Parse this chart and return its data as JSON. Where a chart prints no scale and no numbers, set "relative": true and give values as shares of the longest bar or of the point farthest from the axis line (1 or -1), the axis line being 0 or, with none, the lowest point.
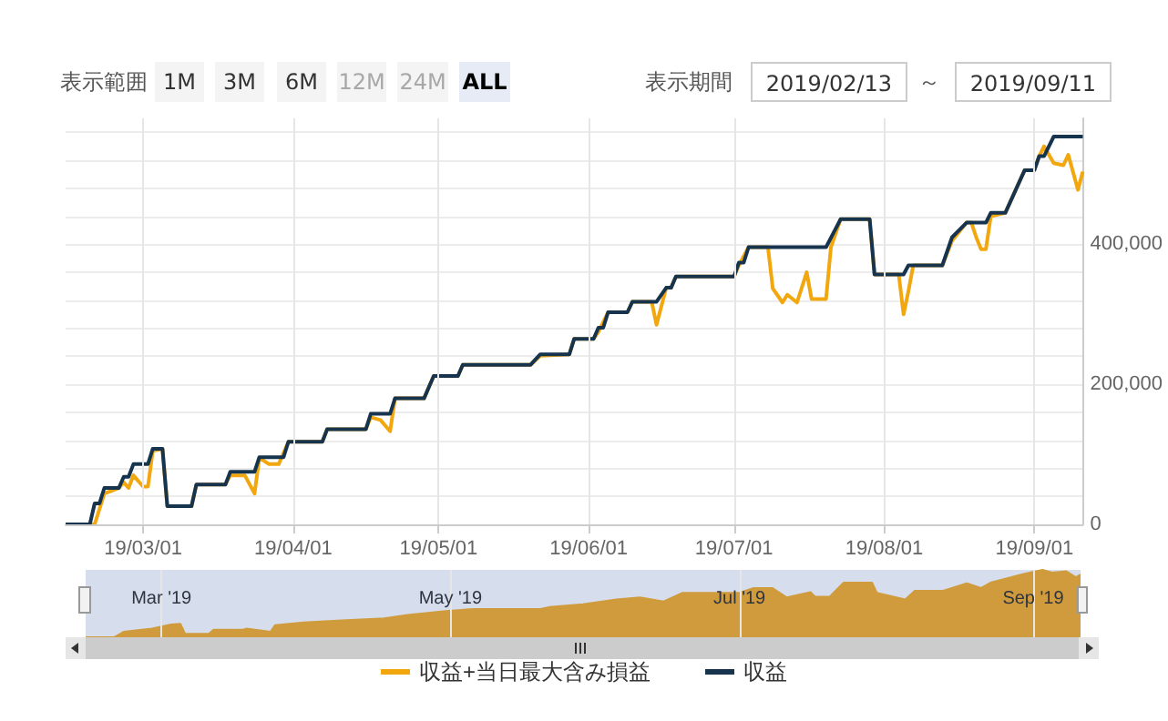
{
  "chart_data": [
    {
      "type": "line",
      "legend": "bottom",
      "grid": true,
      "annotations": [
        "表示範囲",
        "1M",
        "3M",
        "6M",
        "12M",
        "24M",
        "ALL",
        "表示期間",
        "2019/02/13",
        "～",
        "2019/09/11"
      ],
      "xlim": [
        "2019-02-13",
        "2019-09-11"
      ],
      "xticks": [
        {
          "value": "2019-03-01",
          "label": "19/03/01"
        },
        {
          "value": "2019-04-01",
          "label": "19/04/01"
        },
        {
          "value": "2019-05-01",
          "label": "19/05/01"
        },
        {
          "value": "2019-06-01",
          "label": "19/06/01"
        },
        {
          "value": "2019-07-01",
          "label": "19/07/01"
        },
        {
          "value": "2019-08-01",
          "label": "19/08/01"
        },
        {
          "value": "2019-09-01",
          "label": "19/09/01"
        }
      ],
      "ylim": [
        0,
        580000
      ],
      "yticks": [
        0,
        {
          "value": 40000,
          "label": null
        },
        {
          "value": 80000,
          "label": null
        },
        {
          "value": 120000,
          "label": null
        },
        {
          "value": 160000,
          "label": null
        },
        {
          "value": 200000,
          "label": "200,000"
        },
        {
          "value": 240000,
          "label": null
        },
        {
          "value": 280000,
          "label": null
        },
        {
          "value": 320000,
          "label": null
        },
        {
          "value": 360000,
          "label": null
        },
        {
          "value": 400000,
          "label": "400,000"
        },
        {
          "value": 440000,
          "label": null
        },
        {
          "value": 480000,
          "label": null
        },
        {
          "value": 520000,
          "label": null
        },
        {
          "value": 560000,
          "label": null
        }
      ],
      "series": [
        {
          "name": "収益+当日最大含み損益",
          "color": "#f2a70f",
          "x": [
            "2019-02-13",
            "2019-02-18",
            "2019-02-19",
            "2019-02-21",
            "2019-02-24",
            "2019-02-25",
            "2019-02-26",
            "2019-02-27",
            "2019-03-01",
            "2019-03-02",
            "2019-03-03",
            "2019-03-05",
            "2019-03-06",
            "2019-03-11",
            "2019-03-12",
            "2019-03-18",
            "2019-03-19",
            "2019-03-22",
            "2019-03-24",
            "2019-03-25",
            "2019-03-27",
            "2019-03-29",
            "2019-03-31",
            "2019-04-07",
            "2019-04-08",
            "2019-04-16",
            "2019-04-17",
            "2019-04-19",
            "2019-04-21",
            "2019-04-22",
            "2019-04-28",
            "2019-04-30",
            "2019-05-05",
            "2019-05-06",
            "2019-05-20",
            "2019-05-22",
            "2019-05-28",
            "2019-05-29",
            "2019-06-02",
            "2019-06-03",
            "2019-06-05",
            "2019-06-09",
            "2019-06-10",
            "2019-06-14",
            "2019-06-15",
            "2019-06-17",
            "2019-06-18",
            "2019-06-19",
            "2019-07-01",
            "2019-07-02",
            "2019-07-04",
            "2019-07-08",
            "2019-07-09",
            "2019-07-11",
            "2019-07-12",
            "2019-07-14",
            "2019-07-16",
            "2019-07-17",
            "2019-07-20",
            "2019-07-21",
            "2019-07-23",
            "2019-07-29",
            "2019-07-30",
            "2019-08-04",
            "2019-08-05",
            "2019-08-06",
            "2019-08-07",
            "2019-08-13",
            "2019-08-15",
            "2019-08-18",
            "2019-08-19",
            "2019-08-20",
            "2019-08-21",
            "2019-08-22",
            "2019-08-23",
            "2019-08-26",
            "2019-08-30",
            "2019-09-01",
            "2019-09-02",
            "2019-09-03",
            "2019-09-05",
            "2019-09-07",
            "2019-09-08",
            "2019-09-10",
            "2019-09-11"
          ],
          "values": [
            0,
            0,
            0,
            44000,
            52000,
            60000,
            52000,
            70000,
            54000,
            54000,
            105000,
            108000,
            26000,
            26000,
            57000,
            57000,
            70000,
            70000,
            44000,
            95000,
            86000,
            86000,
            118000,
            118000,
            136000,
            136000,
            153000,
            149000,
            133000,
            180000,
            180000,
            212000,
            212000,
            228000,
            228000,
            241000,
            243000,
            265000,
            265000,
            275000,
            303000,
            303000,
            318000,
            318000,
            285000,
            338000,
            338000,
            354000,
            354000,
            370000,
            396000,
            396000,
            337000,
            317000,
            328000,
            317000,
            360000,
            322000,
            322000,
            396000,
            436000,
            436000,
            357000,
            357000,
            300000,
            333000,
            370000,
            370000,
            405000,
            431000,
            431000,
            410000,
            393000,
            393000,
            440000,
            445000,
            506000,
            506000,
            526000,
            540000,
            516000,
            513000,
            528000,
            478000,
            504000
          ]
        },
        {
          "name": "収益",
          "color": "#17344f",
          "x": [
            "2019-02-13",
            "2019-02-18",
            "2019-02-19",
            "2019-02-20",
            "2019-02-21",
            "2019-02-24",
            "2019-02-25",
            "2019-02-26",
            "2019-02-27",
            "2019-03-02",
            "2019-03-03",
            "2019-03-05",
            "2019-03-06",
            "2019-03-11",
            "2019-03-12",
            "2019-03-18",
            "2019-03-19",
            "2019-03-24",
            "2019-03-25",
            "2019-03-30",
            "2019-03-31",
            "2019-04-07",
            "2019-04-08",
            "2019-04-16",
            "2019-04-17",
            "2019-04-21",
            "2019-04-22",
            "2019-04-28",
            "2019-04-30",
            "2019-05-05",
            "2019-05-06",
            "2019-05-20",
            "2019-05-22",
            "2019-05-28",
            "2019-05-29",
            "2019-06-02",
            "2019-06-03",
            "2019-06-04",
            "2019-06-05",
            "2019-06-09",
            "2019-06-10",
            "2019-06-15",
            "2019-06-17",
            "2019-06-18",
            "2019-06-19",
            "2019-07-01",
            "2019-07-02",
            "2019-07-03",
            "2019-07-04",
            "2019-07-20",
            "2019-07-23",
            "2019-07-29",
            "2019-07-30",
            "2019-08-05",
            "2019-08-06",
            "2019-08-13",
            "2019-08-15",
            "2019-08-18",
            "2019-08-22",
            "2019-08-23",
            "2019-08-26",
            "2019-08-30",
            "2019-09-01",
            "2019-09-02",
            "2019-09-03",
            "2019-09-05",
            "2019-09-11"
          ],
          "values": [
            0,
            0,
            30000,
            30000,
            52000,
            52000,
            68000,
            68000,
            86000,
            86000,
            108000,
            108000,
            26000,
            26000,
            57000,
            57000,
            75000,
            75000,
            96000,
            96000,
            118000,
            118000,
            136000,
            136000,
            158000,
            158000,
            180000,
            180000,
            212000,
            212000,
            228000,
            228000,
            243000,
            243000,
            265000,
            265000,
            281000,
            281000,
            303000,
            303000,
            318000,
            318000,
            338000,
            338000,
            354000,
            354000,
            374000,
            374000,
            396000,
            396000,
            436000,
            436000,
            357000,
            357000,
            370000,
            370000,
            410000,
            431000,
            431000,
            445000,
            445000,
            506000,
            506000,
            526000,
            526000,
            554000,
            554000
          ]
        }
      ]
    },
    {
      "type": "area",
      "relative": true,
      "grid": "x",
      "tick_labels": "x",
      "xlim": [
        "2019-02-13",
        "2019-09-11"
      ],
      "xticks": [
        {
          "value": "2019-03-01",
          "label": "Mar '19"
        },
        {
          "value": "2019-05-01",
          "label": "May '19"
        },
        {
          "value": "2019-07-01",
          "label": "Jul '19"
        },
        {
          "value": "2019-09-01",
          "label": "Sep '19"
        }
      ],
      "series": [
        {
          "color": "#d09b3c",
          "x": [
            "2019-02-13",
            "2019-02-19",
            "2019-02-21",
            "2019-02-27",
            "2019-03-03",
            "2019-03-05",
            "2019-03-06",
            "2019-03-11",
            "2019-03-12",
            "2019-03-18",
            "2019-03-19",
            "2019-03-24",
            "2019-03-25",
            "2019-03-31",
            "2019-04-08",
            "2019-04-17",
            "2019-04-22",
            "2019-04-30",
            "2019-05-06",
            "2019-05-20",
            "2019-05-22",
            "2019-05-29",
            "2019-06-05",
            "2019-06-10",
            "2019-06-15",
            "2019-06-19",
            "2019-07-01",
            "2019-07-04",
            "2019-07-08",
            "2019-07-11",
            "2019-07-16",
            "2019-07-17",
            "2019-07-20",
            "2019-07-23",
            "2019-07-29",
            "2019-07-30",
            "2019-08-05",
            "2019-08-07",
            "2019-08-13",
            "2019-08-18",
            "2019-08-21",
            "2019-08-23",
            "2019-08-30",
            "2019-09-03",
            "2019-09-05",
            "2019-09-08",
            "2019-09-10",
            "2019-09-11"
          ],
          "values": [
            0,
            0,
            0.08,
            0.13,
            0.19,
            0.2,
            0.05,
            0.05,
            0.11,
            0.11,
            0.13,
            0.08,
            0.18,
            0.22,
            0.25,
            0.28,
            0.33,
            0.39,
            0.42,
            0.42,
            0.45,
            0.49,
            0.56,
            0.59,
            0.53,
            0.66,
            0.66,
            0.73,
            0.73,
            0.59,
            0.67,
            0.6,
            0.6,
            0.81,
            0.81,
            0.66,
            0.56,
            0.69,
            0.69,
            0.8,
            0.73,
            0.81,
            0.94,
            1,
            0.96,
            0.98,
            0.89,
            0.93
          ]
        }
      ]
    }
  ]
}
